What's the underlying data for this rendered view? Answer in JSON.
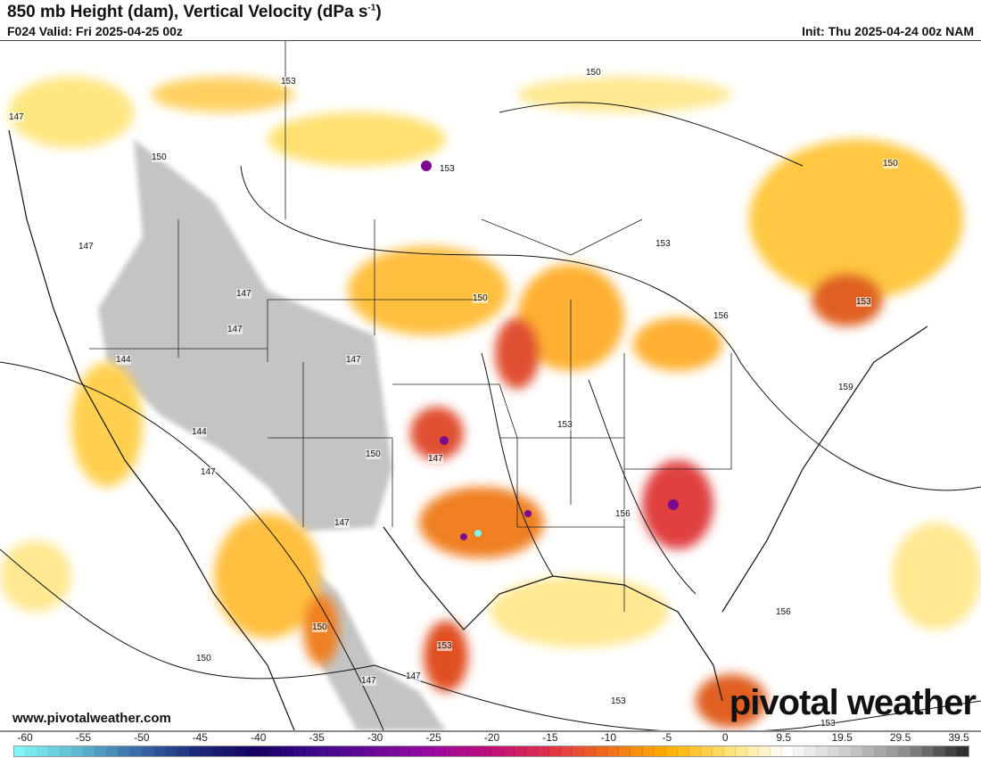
{
  "header": {
    "title": "850 mb Height (dam), Vertical Velocity (dPa s",
    "title_sup": "-1",
    "title_end": ")",
    "valid": "F024 Valid: Fri 2025-04-25 00z",
    "init": "Init: Thu 2025-04-24 00z NAM"
  },
  "footer": {
    "website": "www.pivotalweather.com",
    "logo": "pivotal weather"
  },
  "colorbar": {
    "labels": [
      "-60",
      "-55",
      "-50",
      "-45",
      "-40",
      "-35",
      "-30",
      "-25",
      "-20",
      "-15",
      "-10",
      "-5",
      "0",
      "9.5",
      "19.5",
      "29.5",
      "39.5"
    ],
    "colors": [
      "#7ff5f5",
      "#5fb8d0",
      "#3a6aa8",
      "#1c2a78",
      "#150060",
      "#3c0a8a",
      "#6a0a96",
      "#9a0aa0",
      "#c0107a",
      "#e0304a",
      "#f0701a",
      "#ffb000",
      "#ffe070",
      "#ffffff",
      "#d0d0d0",
      "#909090",
      "#303030"
    ]
  },
  "map": {
    "contour_labels": [
      "147",
      "153",
      "150",
      "153",
      "150",
      "150",
      "147",
      "153",
      "147",
      "150",
      "147",
      "144",
      "147",
      "147",
      "150",
      "153",
      "156",
      "153",
      "159",
      "144",
      "147",
      "147",
      "153",
      "156",
      "156",
      "150",
      "150",
      "147",
      "147",
      "153",
      "153"
    ]
  }
}
